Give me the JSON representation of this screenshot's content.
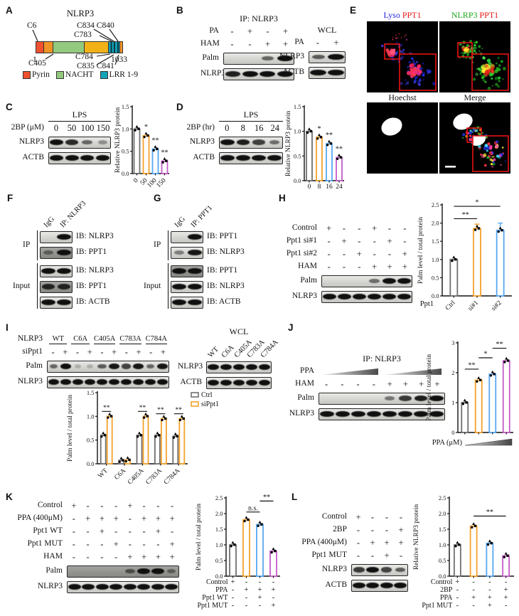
{
  "palette": {
    "gray": "#6f6f6f",
    "orange": "#F5A12B",
    "blue": "#57A7F0",
    "magenta": "#C45CC8"
  },
  "panels": {
    "A": {
      "letter": "A",
      "title": "NLRP3",
      "top_labels": {
        "c6": "C6",
        "c834": "C834 C840",
        "c783": "C783"
      },
      "bottom_labels": {
        "start": "1",
        "c405": "C405",
        "c784": "C784",
        "c835": "C835 C841",
        "end": "1033"
      },
      "segments": [
        {
          "color": "#F0512F",
          "w": 10
        },
        {
          "color": "#F09426",
          "w": 13
        },
        {
          "color": "#93C97E",
          "w": 45
        },
        {
          "color": "#F2B117",
          "w": 34
        },
        {
          "color": "stripes",
          "w": 16
        },
        {
          "color": "#F09426",
          "w": 3
        }
      ],
      "legend": [
        {
          "label": "Pyrin",
          "color": "#F0512F"
        },
        {
          "label": "NACHT",
          "color": "#93C97E"
        },
        {
          "label": "LRR 1-9",
          "color": "#12A3B8"
        }
      ]
    },
    "B": {
      "letter": "B",
      "ip": {
        "title": "IP: NLRP3",
        "rows": [
          {
            "label": "PA",
            "cells": [
              "-",
              "+",
              "-",
              "+"
            ]
          },
          {
            "label": "HAM",
            "cells": [
              "-",
              "-",
              "+",
              "+"
            ]
          }
        ],
        "blots": [
          {
            "label": "Palm",
            "lanes": [
              0,
              0,
              0.5,
              1
            ]
          },
          {
            "label": "NLRP3",
            "lanes": [
              0.9,
              1,
              1,
              1
            ]
          }
        ]
      },
      "wcl": {
        "title": "WCL",
        "rows": [
          {
            "label": "PA",
            "cells": [
              "-",
              "+"
            ]
          }
        ],
        "blots": [
          {
            "label": "NLRP3",
            "lanes": [
              0.55,
              1
            ]
          },
          {
            "label": "ACTB",
            "lanes": [
              1,
              1
            ]
          }
        ]
      }
    },
    "C": {
      "letter": "C",
      "block": {
        "title": "LPS",
        "title_underline": true,
        "rows": [
          {
            "label": "2BP (μM)",
            "cells": [
              "0",
              "50",
              "100",
              "150"
            ]
          }
        ],
        "blots": [
          {
            "label": "NLRP3",
            "lanes": [
              1,
              0.85,
              0.5,
              0.25
            ]
          },
          {
            "label": "ACTB",
            "lanes": [
              1,
              1,
              1,
              1
            ]
          }
        ]
      }
    },
    "D": {
      "letter": "D",
      "block": {
        "title": "LPS",
        "title_underline": true,
        "rows": [
          {
            "label": "2BP (hr)",
            "cells": [
              "0",
              "8",
              "16",
              "24"
            ]
          }
        ],
        "blots": [
          {
            "label": "NLRP3",
            "lanes": [
              1,
              0.9,
              0.72,
              0.45
            ]
          },
          {
            "label": "ACTB",
            "lanes": [
              1,
              1,
              1,
              1
            ]
          }
        ]
      }
    },
    "E": {
      "letter": "E",
      "titles": [
        [
          {
            "t": "Lyso",
            "c": "#2222E0"
          },
          {
            "t": " PPT1",
            "c": "#E81515"
          }
        ],
        [
          {
            "t": "NLRP3",
            "c": "#18A818"
          },
          {
            "t": " PPT1",
            "c": "#E81515"
          }
        ],
        [
          {
            "t": "Hoechst",
            "c": "#111111"
          }
        ],
        [
          {
            "t": "Merge",
            "c": "#111111"
          }
        ]
      ]
    },
    "F": {
      "letter": "F",
      "head": {
        "rot_labels": [
          "IgG",
          "IP: NLRP3"
        ]
      },
      "groups": [
        {
          "label": "IP",
          "blots": [
            {
              "label": "IB: NLRP3",
              "lanes": [
                0,
                1
              ]
            },
            {
              "label": "IB: PPT1",
              "lanes": [
                0.35,
                1
              ],
              "dark": true
            }
          ]
        },
        {
          "label": "Input",
          "blots": [
            {
              "label": "IB: NLRP3",
              "lanes": [
                1,
                1
              ]
            },
            {
              "label": "IB: PPT1",
              "lanes": [
                0.85,
                0.85
              ],
              "dark": true
            },
            {
              "label": "IB: ACTB",
              "lanes": [
                1,
                1
              ]
            }
          ]
        }
      ]
    },
    "G": {
      "letter": "G",
      "head": {
        "rot_labels": [
          "IgG",
          "IP: PPT1"
        ]
      },
      "groups": [
        {
          "label": "IP",
          "blots": [
            {
              "label": "IB: PPT1",
              "lanes": [
                0,
                1
              ]
            },
            {
              "label": "IB: NLRP3",
              "lanes": [
                0.35,
                0.95
              ]
            }
          ]
        },
        {
          "label": "Input",
          "blots": [
            {
              "label": "IB: PPT1",
              "lanes": [
                1,
                1
              ],
              "dark": true
            },
            {
              "label": "IB: NLRP3",
              "lanes": [
                1,
                1
              ]
            },
            {
              "label": "IB: ACTB",
              "lanes": [
                1,
                1
              ]
            }
          ]
        }
      ]
    },
    "H": {
      "letter": "H",
      "block": {
        "rows": [
          {
            "label": "Control",
            "cells": [
              "+",
              "-",
              "-",
              "+",
              "-",
              "-"
            ]
          },
          {
            "label": "Ppt1 si#1",
            "cells": [
              "-",
              "+",
              "-",
              "-",
              "+",
              "-"
            ]
          },
          {
            "label": "Ppt1 si#2",
            "cells": [
              "-",
              "-",
              "+",
              "-",
              "-",
              "+"
            ]
          },
          {
            "label": "HAM",
            "cells": [
              "-",
              "-",
              "-",
              "+",
              "+",
              "+"
            ]
          }
        ],
        "blots": [
          {
            "label": "Palm",
            "lanes": [
              0,
              0,
              0,
              0.45,
              1,
              1
            ]
          },
          {
            "label": "NLRP3",
            "lanes": [
              1,
              1,
              1,
              1,
              1,
              1
            ]
          }
        ]
      }
    },
    "I": {
      "letter": "I",
      "left": {
        "groups_label": "NLRP3",
        "groups": [
          "WT",
          "C6A",
          "C405A",
          "C783A",
          "C784A"
        ],
        "rows": [
          {
            "label": "siPpt1",
            "cells": [
              "-",
              "+",
              "-",
              "+",
              "-",
              "+",
              "-",
              "+",
              "-",
              "+"
            ]
          }
        ],
        "blots": [
          {
            "label": "Palm",
            "lanes": [
              0.5,
              1,
              0.06,
              0.06,
              0.55,
              0.95,
              0.7,
              0.95,
              0.5,
              0.95
            ]
          },
          {
            "label": "NLRP3",
            "lanes": [
              1,
              1,
              1,
              1,
              1,
              1,
              1,
              1,
              1,
              1
            ]
          }
        ]
      },
      "right": {
        "title": "WCL",
        "rot_labels": [
          "WT",
          "C6A",
          "C405A",
          "C783A",
          "C784A"
        ],
        "blots": [
          {
            "label": "NLRP3",
            "lanes": [
              1,
              1,
              1,
              1,
              1
            ]
          },
          {
            "label": "ACTB",
            "lanes": [
              1,
              1,
              1,
              1,
              1
            ]
          }
        ]
      }
    },
    "J": {
      "letter": "J",
      "block": {
        "title": "IP: NLRP3",
        "rows": [
          {
            "label": "PPA",
            "wedges": 2
          },
          {
            "label": "HAM",
            "cells": [
              "-",
              "-",
              "-",
              "-",
              "+",
              "+",
              "+",
              "+"
            ]
          }
        ],
        "blots": [
          {
            "label": "Palm",
            "lanes": [
              0,
              0,
              0,
              0,
              0.4,
              0.75,
              0.9,
              1
            ]
          },
          {
            "label": "NLRP3",
            "lanes": [
              1,
              1,
              1,
              1,
              1,
              1,
              1,
              1
            ]
          }
        ]
      }
    },
    "K": {
      "letter": "K",
      "block": {
        "rows": [
          {
            "label": "Control",
            "cells": [
              "+",
              "-",
              "-",
              "-",
              "+",
              "-",
              "-",
              "-"
            ]
          },
          {
            "label": "PPA (400μM)",
            "cells": [
              "-",
              "+",
              "+",
              "+",
              "-",
              "+",
              "+",
              "+"
            ]
          },
          {
            "label": "Ppt1 WT",
            "cells": [
              "-",
              "-",
              "+",
              "-",
              "-",
              "-",
              "+",
              "-"
            ]
          },
          {
            "label": "Ppt1 MUT",
            "cells": [
              "-",
              "-",
              "-",
              "+",
              "-",
              "-",
              "-",
              "+"
            ]
          },
          {
            "label": "HAM",
            "cells": [
              "-",
              "-",
              "-",
              "-",
              "+",
              "+",
              "+",
              "+"
            ]
          }
        ],
        "blots": [
          {
            "label": "Palm",
            "lanes": [
              0,
              0,
              0,
              0,
              0.5,
              1,
              1,
              0.35
            ],
            "dark": true
          },
          {
            "label": "NLRP3",
            "lanes": [
              1,
              1,
              1,
              1,
              1,
              1,
              1,
              1
            ]
          }
        ]
      }
    },
    "L": {
      "letter": "L",
      "block": {
        "rows": [
          {
            "label": "Control",
            "cells": [
              "+",
              "-",
              "-",
              "-"
            ]
          },
          {
            "label": "2BP",
            "cells": [
              "-",
              "-",
              "-",
              "+"
            ]
          },
          {
            "label": "PPA (400μM)",
            "cells": [
              "-",
              "+",
              "+",
              "+"
            ]
          },
          {
            "label": "Ppt1 MUT",
            "cells": [
              "-",
              "-",
              "+",
              "-"
            ]
          }
        ],
        "blots": [
          {
            "label": "NLRP3",
            "lanes": [
              0.75,
              1,
              0.7,
              0.55
            ]
          },
          {
            "label": "ACTB",
            "lanes": [
              1,
              1,
              1,
              1
            ]
          }
        ]
      }
    }
  },
  "chart_data": [
    {
      "id": "C",
      "type": "bar",
      "ylabel": "Relative NLRP3 protein",
      "ylim": [
        0,
        1.5
      ],
      "yticks": [
        "0.0",
        "0.5",
        "1.0",
        "1.5"
      ],
      "categories": [
        "0",
        "50",
        "100",
        "150"
      ],
      "values": [
        1.0,
        0.85,
        0.55,
        0.28
      ],
      "sigs": [
        "",
        "*",
        "**",
        "**"
      ],
      "colors": [
        "gray",
        "orange",
        "blue",
        "magenta"
      ],
      "xtick_rotate": true
    },
    {
      "id": "D",
      "type": "bar",
      "ylabel": "Relative NLRP3 protein",
      "ylim": [
        0,
        1.5
      ],
      "yticks": [
        "0.0",
        "0.5",
        "1.0",
        "1.5"
      ],
      "categories": [
        "0",
        "8",
        "16",
        "24"
      ],
      "values": [
        1.0,
        0.88,
        0.75,
        0.47
      ],
      "sigs": [
        "",
        "*",
        "**",
        "**"
      ],
      "colors": [
        "gray",
        "orange",
        "blue",
        "magenta"
      ],
      "xtick_rotate": false
    },
    {
      "id": "H",
      "type": "bar",
      "ylabel": "Palm level / total protein",
      "ylim": [
        0,
        2.5
      ],
      "yticks": [
        "0.0",
        "0.5",
        "1.0",
        "1.5",
        "2.0",
        "2.5"
      ],
      "categories": [
        "Ctrl",
        "si#1",
        "si#2"
      ],
      "values": [
        1.0,
        1.85,
        1.8
      ],
      "errs": [
        0,
        0.12,
        0.2
      ],
      "colors": [
        "gray",
        "orange",
        "blue"
      ],
      "xtick_rotate": true,
      "xtick_prefix": "Ppt1",
      "sig_lines": [
        {
          "from": 0,
          "to": 1,
          "label": "**",
          "at": 2.12
        },
        {
          "from": 0,
          "to": 2,
          "label": "*",
          "at": 2.46
        }
      ]
    },
    {
      "id": "I",
      "type": "grouped-bar",
      "ylabel": "Palm level / total protein",
      "ylim": [
        0,
        1.5
      ],
      "yticks": [
        "0.0",
        "0.5",
        "1.0",
        "1.5"
      ],
      "categories": [
        "WT",
        "C6A",
        "C405A",
        "C783A",
        "C784A"
      ],
      "series": [
        {
          "name": "Ctrl",
          "color": "gray",
          "values": [
            0.6,
            0.07,
            0.6,
            0.6,
            0.58
          ]
        },
        {
          "name": "siPpt1",
          "color": "orange",
          "values": [
            1.0,
            0.08,
            1.0,
            0.95,
            0.95
          ]
        }
      ],
      "pair_sigs": [
        "**",
        "",
        "**",
        "**",
        "**"
      ],
      "legend": true,
      "xtick_rotate": true
    },
    {
      "id": "J",
      "type": "bar",
      "ylabel": "Palm level / total protein",
      "ylim": [
        0,
        3
      ],
      "yticks": [
        "0",
        "1",
        "2",
        "3"
      ],
      "values": [
        1.0,
        1.75,
        1.95,
        2.4
      ],
      "colors": [
        "gray",
        "orange",
        "blue",
        "magenta"
      ],
      "sig_lines": [
        {
          "from": 0,
          "to": 1,
          "label": "**",
          "at": 2.12
        },
        {
          "from": 1,
          "to": 2,
          "label": "*",
          "at": 2.5
        },
        {
          "from": 2,
          "to": 3,
          "label": "**",
          "at": 2.82
        }
      ],
      "x_wedge_label": "PPA (μM)"
    },
    {
      "id": "K",
      "type": "bar",
      "ylabel": "Palm level / total protein",
      "ylim": [
        0,
        2.5
      ],
      "yticks": [
        "0.0",
        "0.5",
        "1.0",
        "1.5",
        "2.0",
        "2.5"
      ],
      "values": [
        1.0,
        1.8,
        1.65,
        0.8
      ],
      "colors": [
        "gray",
        "orange",
        "blue",
        "magenta"
      ],
      "sig_lines": [
        {
          "from": 1,
          "to": 2,
          "label": "n.s.",
          "at": 2.05
        },
        {
          "from": 2,
          "to": 3,
          "label": "**",
          "at": 2.4
        }
      ],
      "x_matrix": {
        "labels": [
          "Control",
          "PPA",
          "Ppt1 WT",
          "Ppt1 MUT"
        ],
        "cells": [
          [
            "+",
            "-",
            "-",
            "-"
          ],
          [
            "-",
            "+",
            "+",
            "+"
          ],
          [
            "-",
            "-",
            "+",
            "-"
          ],
          [
            "-",
            "-",
            "-",
            "+"
          ]
        ]
      }
    },
    {
      "id": "L",
      "type": "bar",
      "ylabel": "Relative NLRP3 protein",
      "ylim": [
        0,
        2.5
      ],
      "yticks": [
        "0.0",
        "0.5",
        "1.0",
        "1.5",
        "2.0",
        "2.5"
      ],
      "values": [
        1.0,
        1.6,
        1.05,
        0.65
      ],
      "colors": [
        "gray",
        "orange",
        "blue",
        "magenta"
      ],
      "sig_lines": [
        {
          "from": 1,
          "to": 3,
          "label": "**",
          "at": 1.92
        }
      ],
      "x_matrix": {
        "labels": [
          "Control",
          "2BP",
          "PPA",
          "Ppt1 MUT"
        ],
        "cells": [
          [
            "+",
            "-",
            "-",
            "-"
          ],
          [
            "-",
            "-",
            "-",
            "+"
          ],
          [
            "-",
            "+",
            "+",
            "+"
          ],
          [
            "-",
            "-",
            "+",
            "-"
          ]
        ]
      }
    }
  ]
}
